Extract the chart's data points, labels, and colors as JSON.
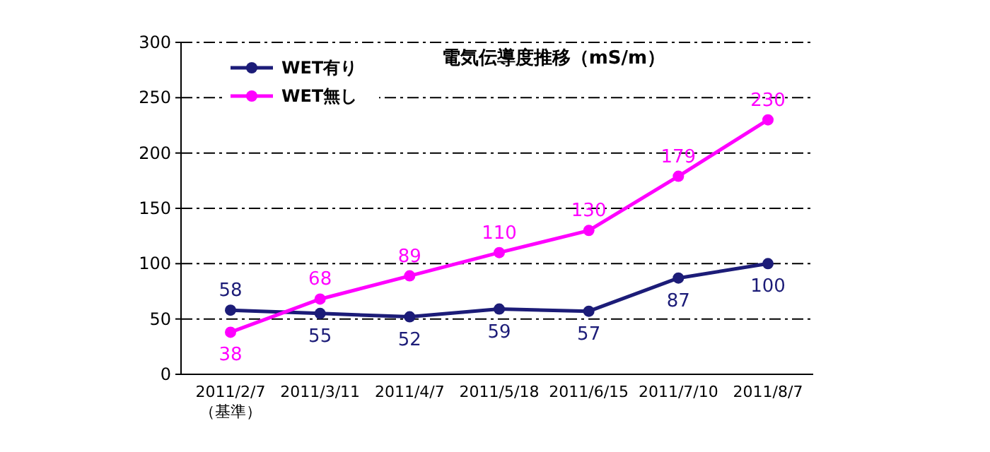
{
  "chart_data": {
    "type": "line",
    "title": "電気伝導度推移（mS/m）",
    "categories": [
      "2011/2/7\n（基準）",
      "2011/3/11",
      "2011/4/7",
      "2011/5/18",
      "2011/6/15",
      "2011/7/10",
      "2011/8/7"
    ],
    "series": [
      {
        "name": "WET有り",
        "color": "#1c1c78",
        "values": [
          58,
          55,
          52,
          59,
          57,
          87,
          100
        ]
      },
      {
        "name": "WET無し",
        "color": "#ff00ff",
        "values": [
          38,
          68,
          89,
          110,
          130,
          179,
          230
        ]
      }
    ],
    "ylim": [
      0,
      300
    ],
    "yticks": [
      0,
      50,
      100,
      150,
      200,
      250,
      300
    ],
    "grid": "y",
    "legend": "top left",
    "marker": "circle",
    "line_style": "solid",
    "data_labels": true
  }
}
